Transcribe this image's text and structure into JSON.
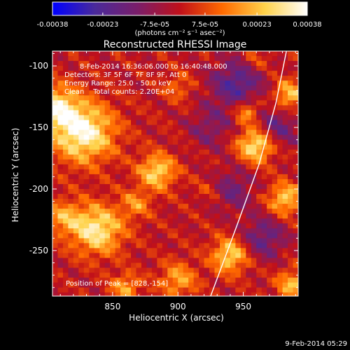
{
  "chart_data": {
    "type": "heatmap",
    "title": "Reconstructed RHESSI Image",
    "xlabel": "Heliocentric X (arcsec)",
    "ylabel": "Heliocentric Y (arcsec)",
    "xlim": [
      804,
      992
    ],
    "ylim": [
      -287,
      -88
    ],
    "x_ticks": [
      850,
      900,
      950
    ],
    "y_ticks": [
      -100,
      -150,
      -200,
      -250
    ],
    "colorbar": {
      "range": [
        -0.00038,
        0.00038
      ],
      "ticks": [
        -0.00038,
        -0.00023,
        -7.5e-05,
        7.5e-05,
        0.00023,
        0.00038
      ],
      "tick_labels": [
        "-0.00038",
        "-0.00023",
        "-7.5e-05",
        "7.5e-05",
        "0.00023",
        "0.00038"
      ],
      "unit_label": "(photons cm⁻² s⁻¹ asec⁻²)",
      "colors": [
        "#0000ff",
        "#4a2a9a",
        "#7a1e6a",
        "#c0101a",
        "#ff6a00",
        "#ffd24a",
        "#ffffff"
      ]
    },
    "annotations": {
      "time_range": "8-Feb-2014 16:36:06.000 to 16:40:48.000",
      "detectors": "Detectors: 3F 5F 6F 7F 8F 9F, Att 0",
      "energy_range": "Energy Range: 25.0 - 50.0 keV",
      "clean_info": "Clean    Total counts: 2.20E+04",
      "peak_position": "Position of Peak = [828,-154]"
    },
    "sources": [
      {
        "x": 827,
        "y": -154,
        "intensity": 0.00036,
        "sigma": 17
      },
      {
        "x": 806,
        "y": -133,
        "intensity": 0.00028,
        "sigma": 12
      },
      {
        "x": 838,
        "y": -233,
        "intensity": 0.00032,
        "sigma": 14
      },
      {
        "x": 812,
        "y": -223,
        "intensity": 0.00018,
        "sigma": 10
      },
      {
        "x": 884,
        "y": -186,
        "intensity": 0.00028,
        "sigma": 10
      },
      {
        "x": 868,
        "y": -212,
        "intensity": 0.00016,
        "sigma": 8
      },
      {
        "x": 900,
        "y": -274,
        "intensity": 0.0002,
        "sigma": 10
      },
      {
        "x": 940,
        "y": -254,
        "intensity": 0.00028,
        "sigma": 10
      },
      {
        "x": 960,
        "y": -164,
        "intensity": 0.00034,
        "sigma": 10
      },
      {
        "x": 953,
        "y": -137,
        "intensity": 0.00022,
        "sigma": 7
      },
      {
        "x": 982,
        "y": -208,
        "intensity": 0.00026,
        "sigma": 9
      },
      {
        "x": 985,
        "y": -124,
        "intensity": 0.00024,
        "sigma": 9
      },
      {
        "x": 900,
        "y": -117,
        "intensity": 0.00012,
        "sigma": 8
      },
      {
        "x": 925,
        "y": -200,
        "intensity": 0.0001,
        "sigma": 8
      },
      {
        "x": 860,
        "y": -280,
        "intensity": 0.0002,
        "sigma": 8
      },
      {
        "x": 988,
        "y": -278,
        "intensity": 0.00022,
        "sigma": 9
      },
      {
        "x": 960,
        "y": -95,
        "intensity": 0.0001,
        "sigma": 7
      }
    ],
    "negative_regions": [
      {
        "x": 945,
        "y": -115,
        "intensity": -0.00022,
        "sigma": 14
      },
      {
        "x": 975,
        "y": -150,
        "intensity": -0.00018,
        "sigma": 12
      },
      {
        "x": 925,
        "y": -150,
        "intensity": -0.00012,
        "sigma": 12
      },
      {
        "x": 940,
        "y": -200,
        "intensity": -0.00016,
        "sigma": 12
      },
      {
        "x": 965,
        "y": -240,
        "intensity": -0.00018,
        "sigma": 12
      }
    ],
    "limb_curve": [
      {
        "x": 983,
        "y": -88
      },
      {
        "x": 975,
        "y": -130
      },
      {
        "x": 962,
        "y": -180
      },
      {
        "x": 945,
        "y": -230
      },
      {
        "x": 925,
        "y": -287
      }
    ],
    "grid": false,
    "legend": "none"
  },
  "footer": {
    "date": "9-Feb-2014 05:29"
  }
}
